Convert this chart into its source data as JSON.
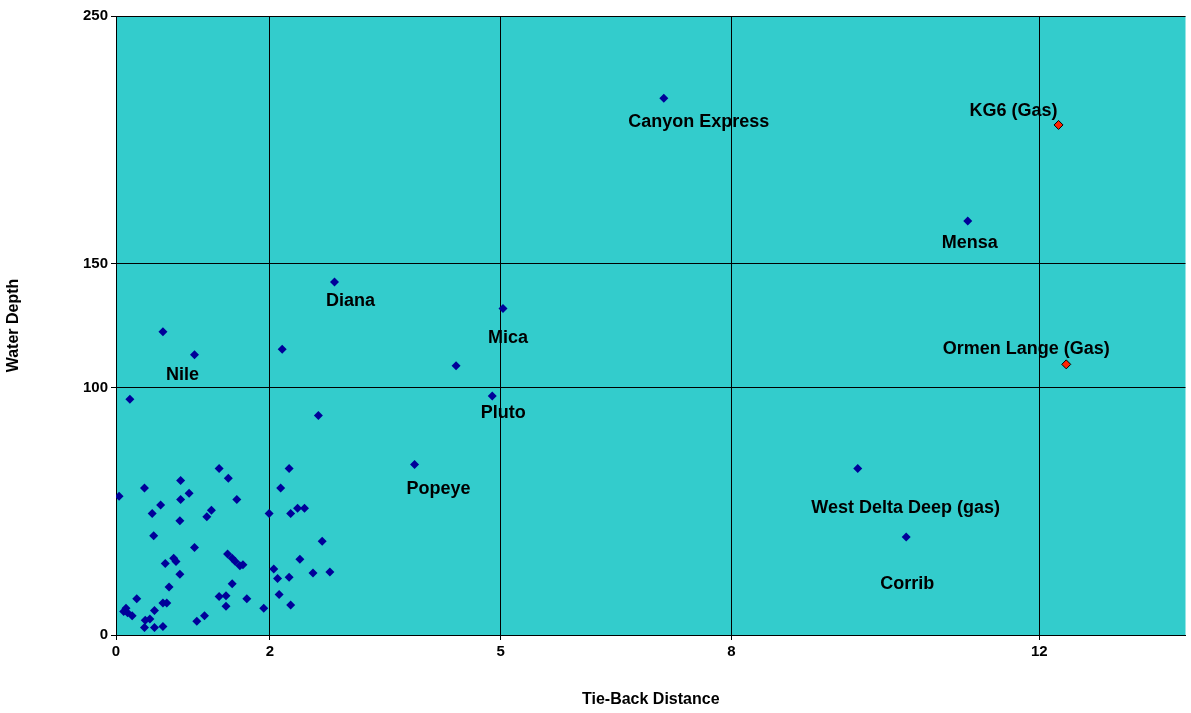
{
  "chart_data": {
    "type": "scatter",
    "xlabel": "Tie-Back Distance",
    "ylabel": "Water Depth",
    "xlim": [
      0,
      13.9
    ],
    "ylim": [
      0,
      250
    ],
    "xticks": [
      0,
      2,
      5,
      8,
      12
    ],
    "yticks": [
      0,
      100,
      150,
      250
    ],
    "grid": true,
    "legend": false,
    "marker": "diamond",
    "series": [
      {
        "color": "#000099",
        "x": [
          7.12,
          11.07,
          2.84,
          5.03,
          0.61,
          1.02,
          4.42,
          2.16,
          4.89,
          0.18,
          2.63,
          3.88,
          9.64,
          10.27,
          0.04,
          0.37,
          0.47,
          0.58,
          0.49,
          0.64,
          0.84,
          0.83,
          0.95,
          0.84,
          0.75,
          0.78,
          0.83,
          1.02,
          1.18,
          1.24,
          1.34,
          1.46,
          1.57,
          1.45,
          1.51,
          1.55,
          1.61,
          1.65,
          1.51,
          1.34,
          1.43,
          1.43,
          1.7,
          1.15,
          1.05,
          0.61,
          0.66,
          0.69,
          0.5,
          0.44,
          0.37,
          0.38,
          0.5,
          0.61,
          0.27,
          0.13,
          0.1,
          0.15,
          0.21,
          1.99,
          2.14,
          2.25,
          2.27,
          2.36,
          2.45,
          2.39,
          2.25,
          2.27,
          2.12,
          2.1,
          2.05,
          1.92,
          2.56,
          2.68,
          2.78
        ],
        "values": [
          216.8,
          167.2,
          142.6,
          131.9,
          122.5,
          113.2,
          108.7,
          115.4,
          96.5,
          95.2,
          88.7,
          68.9,
          67.2,
          39.6,
          56.0,
          59.4,
          49.1,
          52.5,
          40.1,
          28.9,
          62.4,
          46.1,
          57.3,
          54.7,
          31.0,
          29.7,
          24.5,
          35.3,
          47.8,
          50.4,
          67.2,
          63.3,
          54.7,
          32.7,
          31.0,
          29.7,
          28.0,
          28.4,
          20.7,
          15.5,
          15.9,
          11.6,
          14.6,
          7.8,
          5.6,
          12.9,
          12.9,
          19.4,
          9.9,
          6.5,
          3.0,
          6.0,
          3.0,
          3.4,
          14.6,
          10.8,
          9.5,
          9.0,
          7.8,
          49.1,
          59.4,
          67.2,
          49.1,
          51.2,
          51.2,
          30.6,
          23.3,
          12.1,
          16.4,
          22.8,
          26.7,
          10.8,
          25.0,
          37.9,
          25.4
        ]
      },
      {
        "color": "#ff2200",
        "x": [
          12.25,
          12.35
        ],
        "values": [
          206.0,
          109.3
        ]
      }
    ],
    "annotations": [
      {
        "text": "Canyon Express",
        "x": 7.12,
        "y": 216.8
      },
      {
        "text": "KG6 (Gas)",
        "x": 12.25,
        "y": 206.0
      },
      {
        "text": "Mensa",
        "x": 11.07,
        "y": 167.2
      },
      {
        "text": "Diana",
        "x": 2.84,
        "y": 142.6
      },
      {
        "text": "Mica",
        "x": 5.03,
        "y": 131.9
      },
      {
        "text": "Nile",
        "x": 1.02,
        "y": 113.2
      },
      {
        "text": "Ormen Lange (Gas)",
        "x": 12.35,
        "y": 109.3
      },
      {
        "text": "Pluto",
        "x": 4.89,
        "y": 96.5
      },
      {
        "text": "Popeye",
        "x": 3.88,
        "y": 68.9
      },
      {
        "text": "West Delta Deep (gas)",
        "x": 9.64,
        "y": 67.2
      },
      {
        "text": "Corrib",
        "x": 10.27,
        "y": 39.6
      }
    ]
  }
}
